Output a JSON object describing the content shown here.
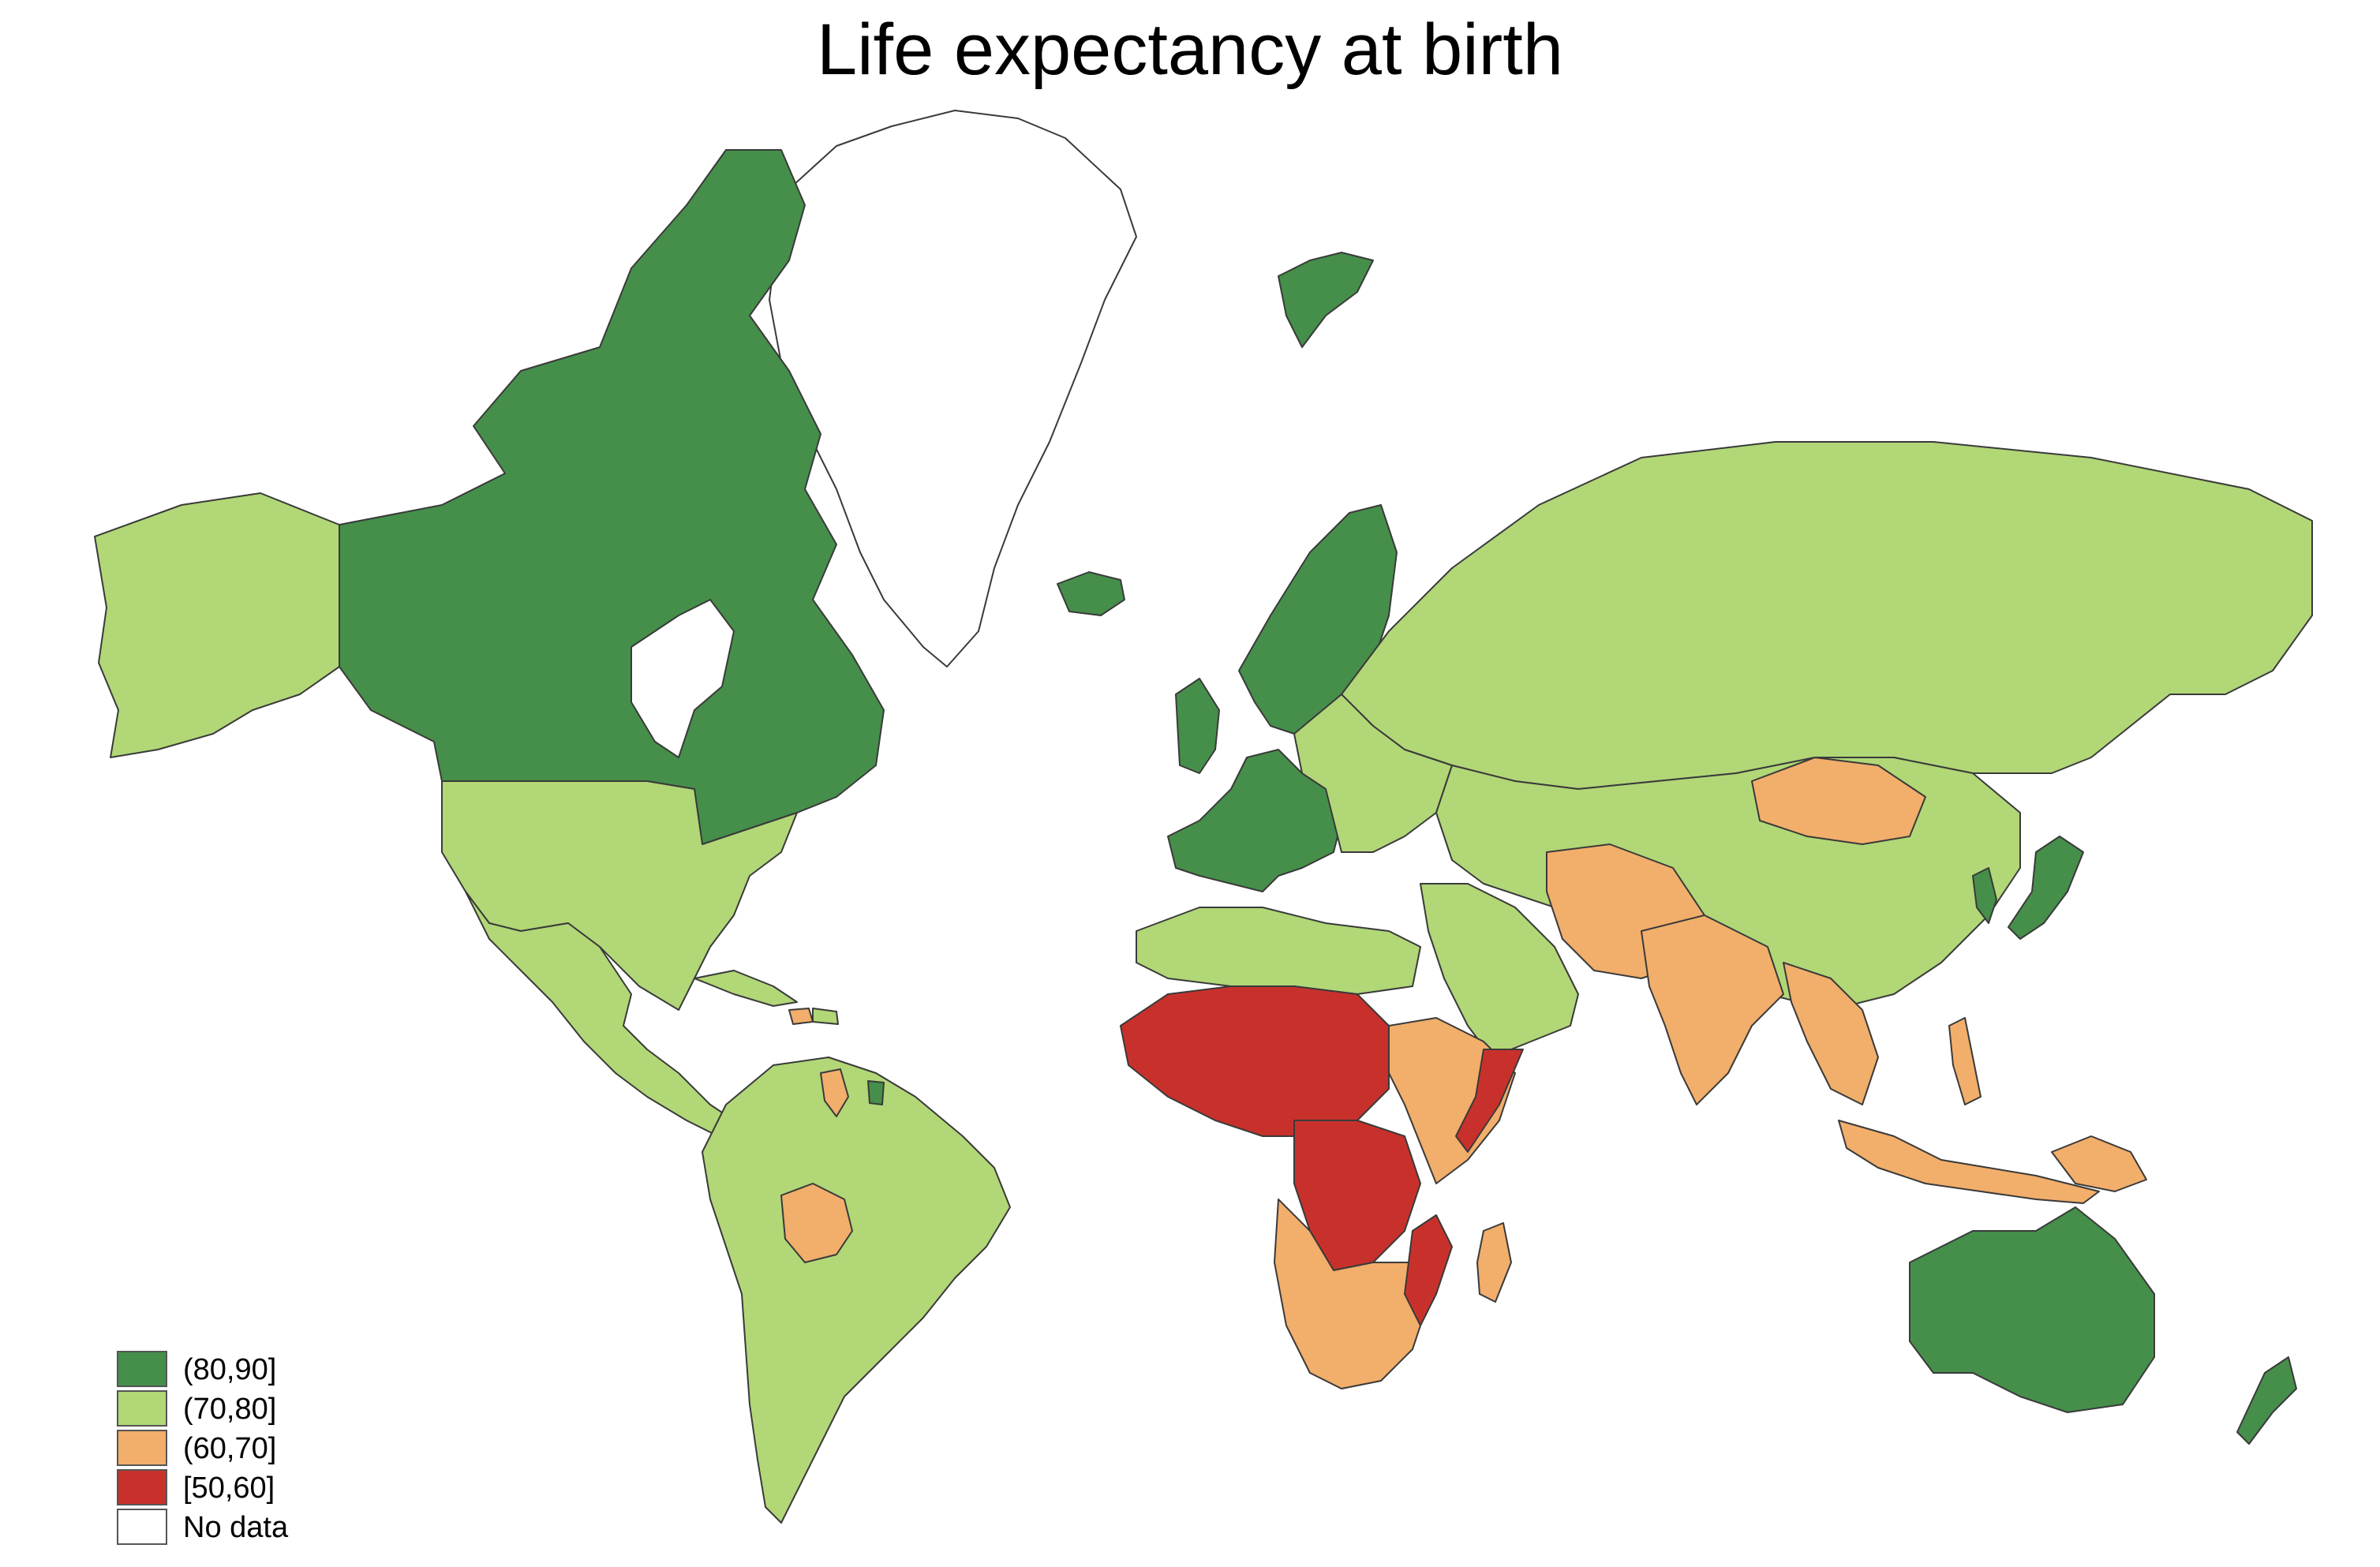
{
  "title": "Life expectancy at birth",
  "colors": {
    "c80_90": "#458f4a",
    "c70_80": "#b1d777",
    "c60_70": "#f2ae6b",
    "c50_60": "#c8312b",
    "no_data": "#ffffff"
  },
  "legend": [
    {
      "label": "(80,90]",
      "color": "#458f4a"
    },
    {
      "label": "(70,80]",
      "color": "#b1d777"
    },
    {
      "label": "(60,70]",
      "color": "#f2ae6b"
    },
    {
      "label": "[50,60]",
      "color": "#c8312b"
    },
    {
      "label": "No data",
      "color": "#ffffff"
    }
  ]
}
